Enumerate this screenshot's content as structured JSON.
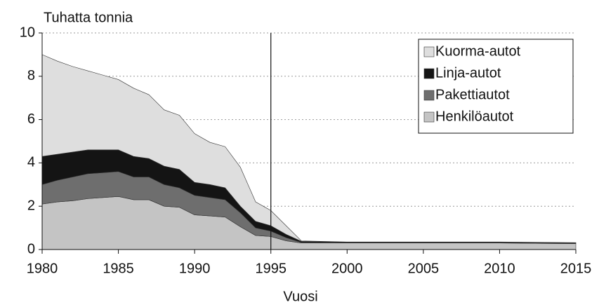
{
  "chart_data": {
    "type": "stacked_area",
    "y_label": "Tuhatta tonnia",
    "x_label": "Vuosi",
    "x": [
      1980,
      1981,
      1982,
      1983,
      1984,
      1985,
      1986,
      1987,
      1988,
      1989,
      1990,
      1991,
      1992,
      1993,
      1994,
      1995,
      1996,
      1997,
      2000,
      2005,
      2010,
      2015
    ],
    "series": [
      {
        "name": "Henkilöautot",
        "color": "#c4c4c4",
        "values": [
          2.1,
          2.2,
          2.25,
          2.35,
          2.4,
          2.45,
          2.3,
          2.3,
          2.0,
          1.95,
          1.6,
          1.55,
          1.5,
          1.05,
          0.65,
          0.6,
          0.4,
          0.3,
          0.3,
          0.3,
          0.3,
          0.27
        ]
      },
      {
        "name": "Pakettiautot",
        "color": "#6e6e6e",
        "values": [
          0.9,
          1.0,
          1.1,
          1.15,
          1.15,
          1.15,
          1.05,
          1.05,
          1.0,
          0.9,
          0.9,
          0.85,
          0.8,
          0.65,
          0.35,
          0.25,
          0.15,
          0.03,
          0.02,
          0.02,
          0.02,
          0.02
        ]
      },
      {
        "name": "Linja-autot",
        "color": "#141414",
        "values": [
          1.3,
          1.2,
          1.15,
          1.1,
          1.05,
          1.0,
          0.95,
          0.85,
          0.85,
          0.85,
          0.6,
          0.6,
          0.55,
          0.3,
          0.3,
          0.25,
          0.15,
          0.05,
          0.02,
          0.02,
          0.02,
          0.02
        ]
      },
      {
        "name": "Kuorma-autot",
        "color": "#dedede",
        "values": [
          4.7,
          4.3,
          3.95,
          3.65,
          3.45,
          3.25,
          3.15,
          2.95,
          2.6,
          2.5,
          2.25,
          1.95,
          1.9,
          1.8,
          0.9,
          0.7,
          0.4,
          0.02,
          0.01,
          0.01,
          0.01,
          0.01
        ]
      }
    ],
    "xlim": [
      1980,
      2015
    ],
    "xticks": [
      1980,
      1985,
      1990,
      1995,
      2000,
      2005,
      2010,
      2015
    ],
    "ylim": [
      0,
      10
    ],
    "yticks": [
      0,
      2,
      4,
      6,
      8,
      10
    ],
    "vline": 1995,
    "grid": true,
    "legend": "upper right"
  }
}
